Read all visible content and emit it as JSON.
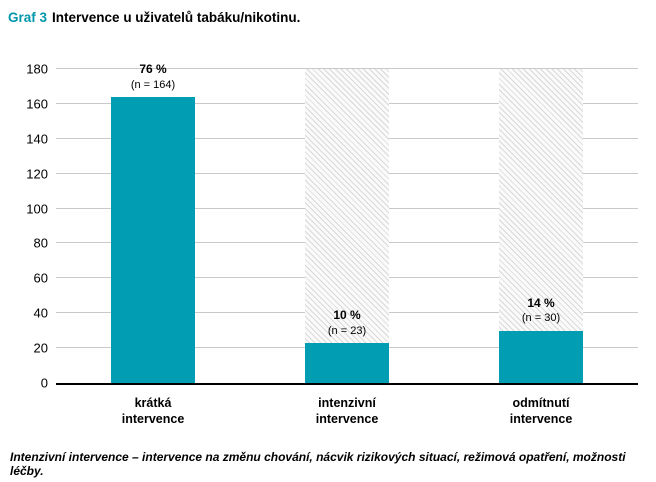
{
  "title": {
    "prefix": "Graf 3",
    "text": "Intervence u uživatelů tabáku/nikotinu."
  },
  "footer_note": "Intenzivní intervence – intervence na změnu chování, nácvik rizikových situací, režimová opatření, možnosti léčby.",
  "colors": {
    "bar": "#009db3",
    "title_prefix": "#0097ab",
    "grid": "#c9c9c9",
    "axis": "#000000"
  },
  "chart_data": {
    "type": "bar",
    "title": "Graf 3 Intervence u uživatelů tabáku/nikotinu.",
    "categories": [
      "krátká\nintervence",
      "intenzivní\nintervence",
      "odmítnutí\nintervence"
    ],
    "values": [
      164,
      23,
      30
    ],
    "bar_labels": [
      {
        "percent": "76 %",
        "n": "(n = 164)"
      },
      {
        "percent": "10 %",
        "n": "(n = 23)"
      },
      {
        "percent": "14 %",
        "n": "(n = 30)"
      }
    ],
    "ylim": [
      0,
      180
    ],
    "yticks": [
      0,
      20,
      40,
      60,
      80,
      100,
      120,
      140,
      160,
      180
    ],
    "grid": true,
    "hatched_background_columns": [
      1,
      2
    ]
  }
}
